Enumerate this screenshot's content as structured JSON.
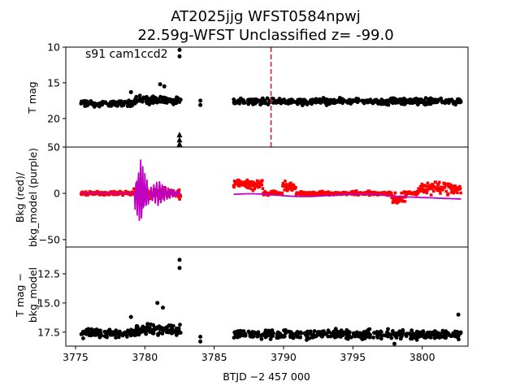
{
  "chart_data": [
    {
      "type": "scatter",
      "panel": "top",
      "title_line1": "AT2025jjg  WFST0584npwj",
      "title_line2": "22.59g-WFST Unclassified z= -99.0",
      "annotation": "s91 cam1ccd2",
      "ylabel": "T mag",
      "ylim": [
        24.0,
        10.0
      ],
      "y_ticks": [
        10,
        15,
        20
      ],
      "y_tick_labels": [
        "10",
        "15",
        "20"
      ],
      "vline_x": 3789.1,
      "vline_color": "#d62728",
      "marker_color": "#000000",
      "series": [
        {
          "name": "segment-1",
          "x_range": [
            3775.4,
            3779.3
          ],
          "y_center": 17.9,
          "y_spread": 1.0
        },
        {
          "name": "segment-2",
          "x_range": [
            3779.3,
            3782.6
          ],
          "y_center": 17.5,
          "y_spread": 1.3
        },
        {
          "name": "segment-3",
          "x_range": [
            3786.4,
            3802.8
          ],
          "y_center": 17.6,
          "y_spread": 1.0
        }
      ],
      "points": [
        {
          "x": 3782.5,
          "y": 10.4
        },
        {
          "x": 3782.5,
          "y": 11.3
        },
        {
          "x": 3782.5,
          "y": 22.3
        },
        {
          "x": 3782.5,
          "y": 23.0
        },
        {
          "x": 3782.5,
          "y": 23.6
        },
        {
          "x": 3784.0,
          "y": 17.5
        },
        {
          "x": 3784.0,
          "y": 18.1
        },
        {
          "x": 3781.1,
          "y": 15.2
        },
        {
          "x": 3781.4,
          "y": 15.5
        },
        {
          "x": 3779.0,
          "y": 16.3
        }
      ]
    },
    {
      "type": "line",
      "panel": "middle",
      "ylabel_line1": "Bkg (red)/",
      "ylabel_line2": "bkg_model (purple)",
      "ylim": [
        -58,
        50
      ],
      "y_ticks": [
        50,
        0,
        -50
      ],
      "y_tick_labels": [
        "50",
        "0",
        "−50"
      ],
      "series": [
        {
          "name": "Bkg",
          "color": "#ff0000"
        },
        {
          "name": "bkg_model",
          "color": "#c000c0"
        }
      ]
    },
    {
      "type": "scatter",
      "panel": "bottom",
      "ylabel_line1": "T mag −",
      "ylabel_line2": "bkg_model",
      "ylim": [
        18.7,
        10.2
      ],
      "y_ticks": [
        12.5,
        15.0,
        17.5
      ],
      "y_tick_labels": [
        "12.5",
        "15.0",
        "17.5"
      ],
      "xlabel": "BTJD −2 457 000",
      "xlim": [
        3774.3,
        3803.3
      ],
      "x_ticks": [
        3775,
        3780,
        3785,
        3790,
        3795,
        3800
      ],
      "x_tick_labels": [
        "3775",
        "3780",
        "3785",
        "3790",
        "3795",
        "3800"
      ],
      "marker_color": "#000000",
      "series": [
        {
          "name": "segment-1",
          "x_range": [
            3775.4,
            3779.3
          ],
          "y_center": 17.6,
          "y_spread": 0.8
        },
        {
          "name": "segment-2",
          "x_range": [
            3779.3,
            3782.6
          ],
          "y_center": 17.3,
          "y_spread": 1.0
        },
        {
          "name": "segment-3",
          "x_range": [
            3786.4,
            3802.8
          ],
          "y_center": 17.7,
          "y_spread": 0.9
        }
      ],
      "points": [
        {
          "x": 3782.5,
          "y": 11.3
        },
        {
          "x": 3782.5,
          "y": 12.0
        },
        {
          "x": 3780.9,
          "y": 15.0
        },
        {
          "x": 3781.3,
          "y": 15.4
        },
        {
          "x": 3779.0,
          "y": 16.2
        },
        {
          "x": 3780.2,
          "y": 16.8
        },
        {
          "x": 3784.0,
          "y": 17.9
        },
        {
          "x": 3784.0,
          "y": 18.3
        },
        {
          "x": 3802.6,
          "y": 16.0
        },
        {
          "x": 3798.0,
          "y": 18.5
        }
      ]
    }
  ]
}
